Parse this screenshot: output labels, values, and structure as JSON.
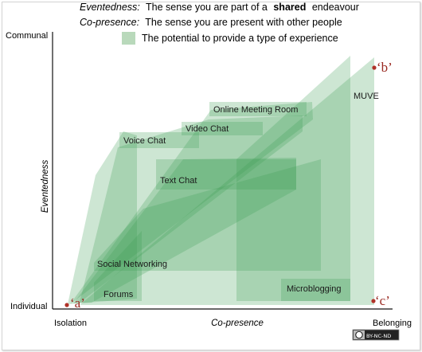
{
  "legend": {
    "line1_term": "Eventedness:",
    "line1_text_a": "The sense you are part of a",
    "line1_bold": "shared",
    "line1_text_b": "endeavour",
    "line2_term": "Co-presence:",
    "line2_text": "The sense you are present with other people",
    "line3_text": "The potential to provide a type of experience",
    "swatch_color": "#b9d9bb"
  },
  "axes": {
    "y_top": "Communal",
    "y_bottom": "Individual",
    "y_title": "Eventedness",
    "x_left": "Isolation",
    "x_right": "Belonging",
    "x_title": "Co-presence"
  },
  "experiences": [
    {
      "label": "Online Meeting Room"
    },
    {
      "label": "Video Chat"
    },
    {
      "label": "Voice Chat"
    },
    {
      "label": "MUVE"
    },
    {
      "label": "Text Chat"
    },
    {
      "label": "Social Networking"
    },
    {
      "label": "Forums"
    },
    {
      "label": "Microblogging"
    }
  ],
  "points": [
    {
      "label": "‘a’"
    },
    {
      "label": "‘b’"
    },
    {
      "label": "‘c’"
    }
  ],
  "license_badge": "BY-NC-ND",
  "colors": {
    "region_fill": "#3f9f54",
    "point_color": "#b03228"
  }
}
